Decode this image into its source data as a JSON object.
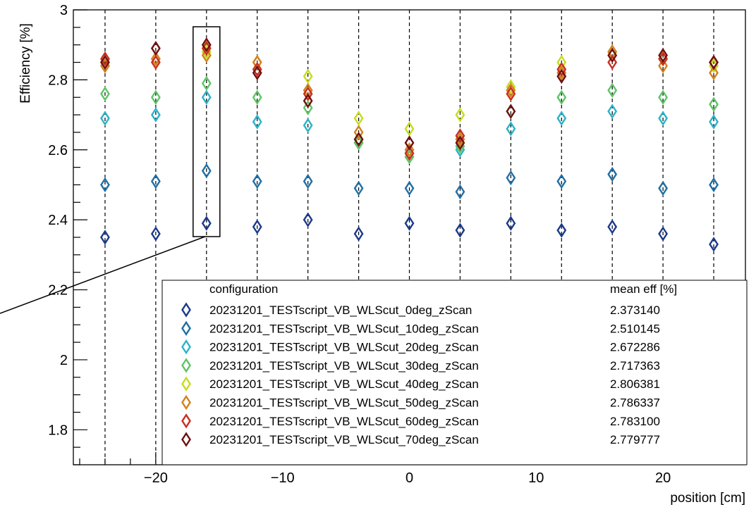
{
  "chart_data": {
    "type": "scatter",
    "title": "",
    "xlabel": "position [cm]",
    "ylabel": "Efficiency [%]",
    "xlim": [
      -26.5,
      26.5
    ],
    "ylim": [
      1.7,
      3.0
    ],
    "grid": "vertical dashed lines at measured positions",
    "x_ticks": [
      -20,
      -10,
      0,
      10,
      20
    ],
    "x_tick_labels": [
      "−20",
      "−10",
      "0",
      "10",
      "20"
    ],
    "y_ticks": [
      1.8,
      2.0,
      2.2,
      2.4,
      2.6,
      2.8,
      3.0
    ],
    "y_tick_labels": [
      "1.8",
      "2",
      "2.2",
      "2.4",
      "2.6",
      "2.8",
      "3"
    ],
    "x": [
      -24,
      -20,
      -16,
      -12,
      -8,
      -4,
      0,
      4,
      8,
      12,
      16,
      20,
      24
    ],
    "legend": {
      "placement": "bottom-right",
      "header_config": "configuration",
      "header_eff": "mean eff [%]"
    },
    "series": [
      {
        "name": "20231201_TESTscript_VB_WLScut_0deg_zScan",
        "mean_eff": "2.373140",
        "color": "#1b3a8c",
        "values": [
          2.35,
          2.36,
          2.39,
          2.38,
          2.4,
          2.36,
          2.39,
          2.37,
          2.39,
          2.37,
          2.38,
          2.36,
          2.33
        ]
      },
      {
        "name": "20231201_TESTscript_VB_WLScut_10deg_zScan",
        "mean_eff": "2.510145",
        "color": "#1f6fa6",
        "values": [
          2.5,
          2.51,
          2.54,
          2.51,
          2.51,
          2.49,
          2.49,
          2.48,
          2.52,
          2.51,
          2.53,
          2.49,
          2.5
        ]
      },
      {
        "name": "20231201_TESTscript_VB_WLScut_20deg_zScan",
        "mean_eff": "2.672286",
        "color": "#2bb3c8",
        "values": [
          2.69,
          2.7,
          2.75,
          2.68,
          2.67,
          2.62,
          2.59,
          2.6,
          2.66,
          2.69,
          2.71,
          2.69,
          2.68
        ]
      },
      {
        "name": "20231201_TESTscript_VB_WLScut_30deg_zScan",
        "mean_eff": "2.717363",
        "color": "#5fc466",
        "values": [
          2.76,
          2.75,
          2.79,
          2.75,
          2.72,
          2.62,
          2.58,
          2.61,
          2.71,
          2.75,
          2.77,
          2.75,
          2.73
        ]
      },
      {
        "name": "20231201_TESTscript_VB_WLScut_40deg_zScan",
        "mean_eff": "2.806381",
        "color": "#c6dc1e",
        "values": [
          2.85,
          2.86,
          2.88,
          2.85,
          2.81,
          2.69,
          2.66,
          2.7,
          2.78,
          2.85,
          2.88,
          2.86,
          2.84
        ]
      },
      {
        "name": "20231201_TESTscript_VB_WLScut_50deg_zScan",
        "mean_eff": "2.786337",
        "color": "#d4801e",
        "values": [
          2.84,
          2.86,
          2.87,
          2.85,
          2.77,
          2.65,
          2.6,
          2.63,
          2.77,
          2.82,
          2.88,
          2.84,
          2.82
        ]
      },
      {
        "name": "20231201_TESTscript_VB_WLScut_60deg_zScan",
        "mean_eff": "2.783100",
        "color": "#c8301c",
        "values": [
          2.86,
          2.85,
          2.89,
          2.83,
          2.76,
          2.63,
          2.59,
          2.64,
          2.76,
          2.83,
          2.85,
          2.86,
          2.85
        ]
      },
      {
        "name": "20231201_TESTscript_VB_WLScut_70deg_zScan",
        "mean_eff": "2.779777",
        "color": "#6e1010",
        "values": [
          2.85,
          2.89,
          2.9,
          2.82,
          2.74,
          2.63,
          2.62,
          2.62,
          2.71,
          2.81,
          2.87,
          2.87,
          2.85
        ]
      }
    ],
    "annotation_color": "#ee1111"
  }
}
